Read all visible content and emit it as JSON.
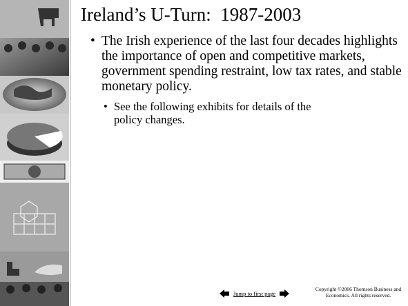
{
  "slide": {
    "title": "Ireland’s U-Turn:  1987-2003",
    "bullets": [
      {
        "text": "The Irish experience of the last four decades highlights the importance of open and competitive markets, government spending restraint, low tax rates, and stable monetary policy.",
        "sub_bullets": [
          "See the following exhibits for details of the policy changes."
        ]
      }
    ]
  },
  "footer": {
    "nav_link": "Jump to first page",
    "copyright": "Copyright ©2006  Thomson Business and Economics. All rights reserved."
  }
}
